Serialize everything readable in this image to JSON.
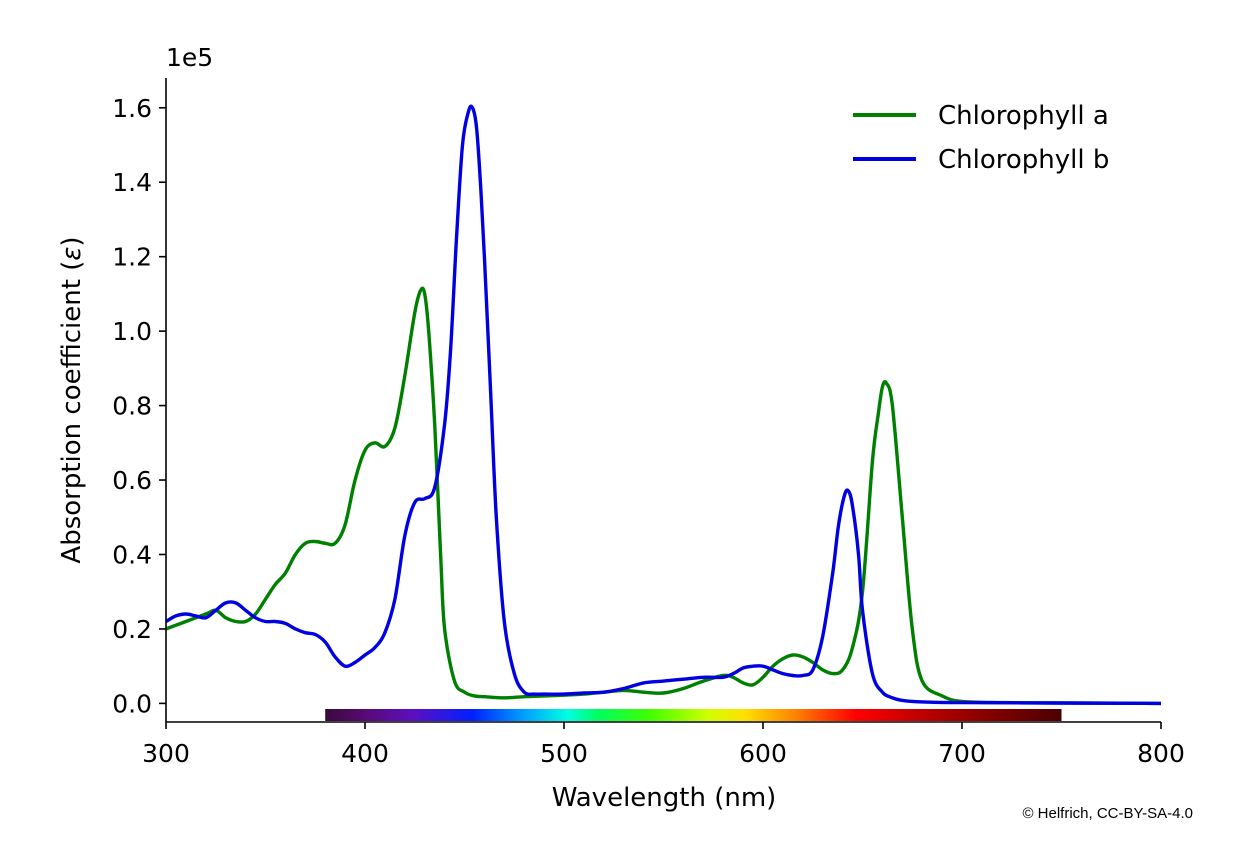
{
  "chart_data": {
    "type": "line",
    "title": "",
    "xlabel": "Wavelength (nm)",
    "ylabel_prefix": "Absorption coefficient (",
    "ylabel_symbol": "ε",
    "ylabel_suffix": ")",
    "y_multiplier": "1e5",
    "xlim": [
      300,
      800
    ],
    "ylim": [
      -0.05,
      1.68
    ],
    "x_ticks": [
      300,
      400,
      500,
      600,
      700,
      800
    ],
    "y_ticks": [
      0.0,
      0.2,
      0.4,
      0.6,
      0.8,
      1.0,
      1.2,
      1.4,
      1.6
    ],
    "x_tick_labels": [
      "300",
      "400",
      "500",
      "600",
      "700",
      "800"
    ],
    "y_tick_labels": [
      "0.0",
      "0.2",
      "0.4",
      "0.6",
      "0.8",
      "1.0",
      "1.2",
      "1.4",
      "1.6"
    ],
    "grid": false,
    "legend_position": "top-right",
    "spectrum_bar_range_nm": [
      380,
      750
    ],
    "series": [
      {
        "name": "Chlorophyll a",
        "color": "#008000",
        "x": [
          300,
          310,
          320,
          325,
          330,
          335,
          340,
          345,
          350,
          355,
          360,
          365,
          370,
          375,
          380,
          385,
          390,
          395,
          400,
          405,
          410,
          415,
          420,
          425,
          428,
          430,
          432,
          435,
          438,
          440,
          445,
          450,
          455,
          460,
          470,
          480,
          490,
          500,
          510,
          520,
          530,
          540,
          550,
          560,
          570,
          580,
          585,
          590,
          595,
          600,
          605,
          610,
          615,
          620,
          625,
          630,
          635,
          640,
          645,
          650,
          655,
          658,
          660,
          662,
          665,
          670,
          675,
          680,
          690,
          700,
          720,
          750,
          800
        ],
        "y": [
          0.2,
          0.22,
          0.24,
          0.25,
          0.23,
          0.22,
          0.22,
          0.24,
          0.28,
          0.32,
          0.35,
          0.4,
          0.43,
          0.435,
          0.43,
          0.43,
          0.48,
          0.6,
          0.68,
          0.7,
          0.69,
          0.74,
          0.88,
          1.05,
          1.11,
          1.1,
          1.0,
          0.75,
          0.4,
          0.2,
          0.06,
          0.03,
          0.02,
          0.018,
          0.015,
          0.018,
          0.02,
          0.022,
          0.025,
          0.03,
          0.035,
          0.03,
          0.028,
          0.04,
          0.06,
          0.075,
          0.07,
          0.055,
          0.05,
          0.07,
          0.1,
          0.12,
          0.13,
          0.125,
          0.11,
          0.09,
          0.08,
          0.09,
          0.15,
          0.3,
          0.65,
          0.78,
          0.85,
          0.86,
          0.8,
          0.5,
          0.2,
          0.06,
          0.02,
          0.005,
          0.002,
          0.001,
          0.0
        ]
      },
      {
        "name": "Chlorophyll b",
        "color": "#0000e0",
        "x": [
          300,
          305,
          310,
          315,
          320,
          325,
          330,
          335,
          340,
          345,
          350,
          355,
          360,
          365,
          370,
          375,
          380,
          385,
          390,
          395,
          400,
          405,
          410,
          415,
          420,
          425,
          430,
          435,
          440,
          443,
          446,
          449,
          452,
          454,
          456,
          458,
          460,
          463,
          466,
          470,
          475,
          480,
          485,
          490,
          500,
          510,
          520,
          530,
          540,
          550,
          560,
          570,
          580,
          585,
          590,
          595,
          600,
          605,
          610,
          615,
          620,
          625,
          630,
          635,
          638,
          641,
          643,
          645,
          648,
          650,
          655,
          660,
          665,
          670,
          680,
          700,
          750,
          800
        ],
        "y": [
          0.22,
          0.235,
          0.24,
          0.235,
          0.23,
          0.25,
          0.27,
          0.27,
          0.25,
          0.23,
          0.22,
          0.22,
          0.215,
          0.2,
          0.19,
          0.185,
          0.165,
          0.125,
          0.1,
          0.11,
          0.13,
          0.15,
          0.19,
          0.28,
          0.45,
          0.54,
          0.55,
          0.58,
          0.75,
          0.95,
          1.25,
          1.5,
          1.59,
          1.6,
          1.55,
          1.4,
          1.2,
          0.85,
          0.5,
          0.22,
          0.08,
          0.03,
          0.025,
          0.025,
          0.025,
          0.028,
          0.03,
          0.04,
          0.055,
          0.06,
          0.065,
          0.07,
          0.07,
          0.08,
          0.095,
          0.1,
          0.1,
          0.09,
          0.08,
          0.075,
          0.075,
          0.09,
          0.18,
          0.35,
          0.48,
          0.56,
          0.57,
          0.53,
          0.4,
          0.25,
          0.08,
          0.03,
          0.015,
          0.008,
          0.004,
          0.002,
          0.001,
          0.0
        ]
      }
    ]
  },
  "credit": "© Helfrich, CC-BY-SA-4.0"
}
